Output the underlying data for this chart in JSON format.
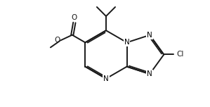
{
  "background": "#ffffff",
  "line_color": "#1a1a1a",
  "line_width": 1.4,
  "font_size": 7.5,
  "figsize": [
    2.99,
    1.52
  ],
  "dpi": 100,
  "xlim": [
    0,
    10
  ],
  "ylim": [
    0,
    5
  ]
}
